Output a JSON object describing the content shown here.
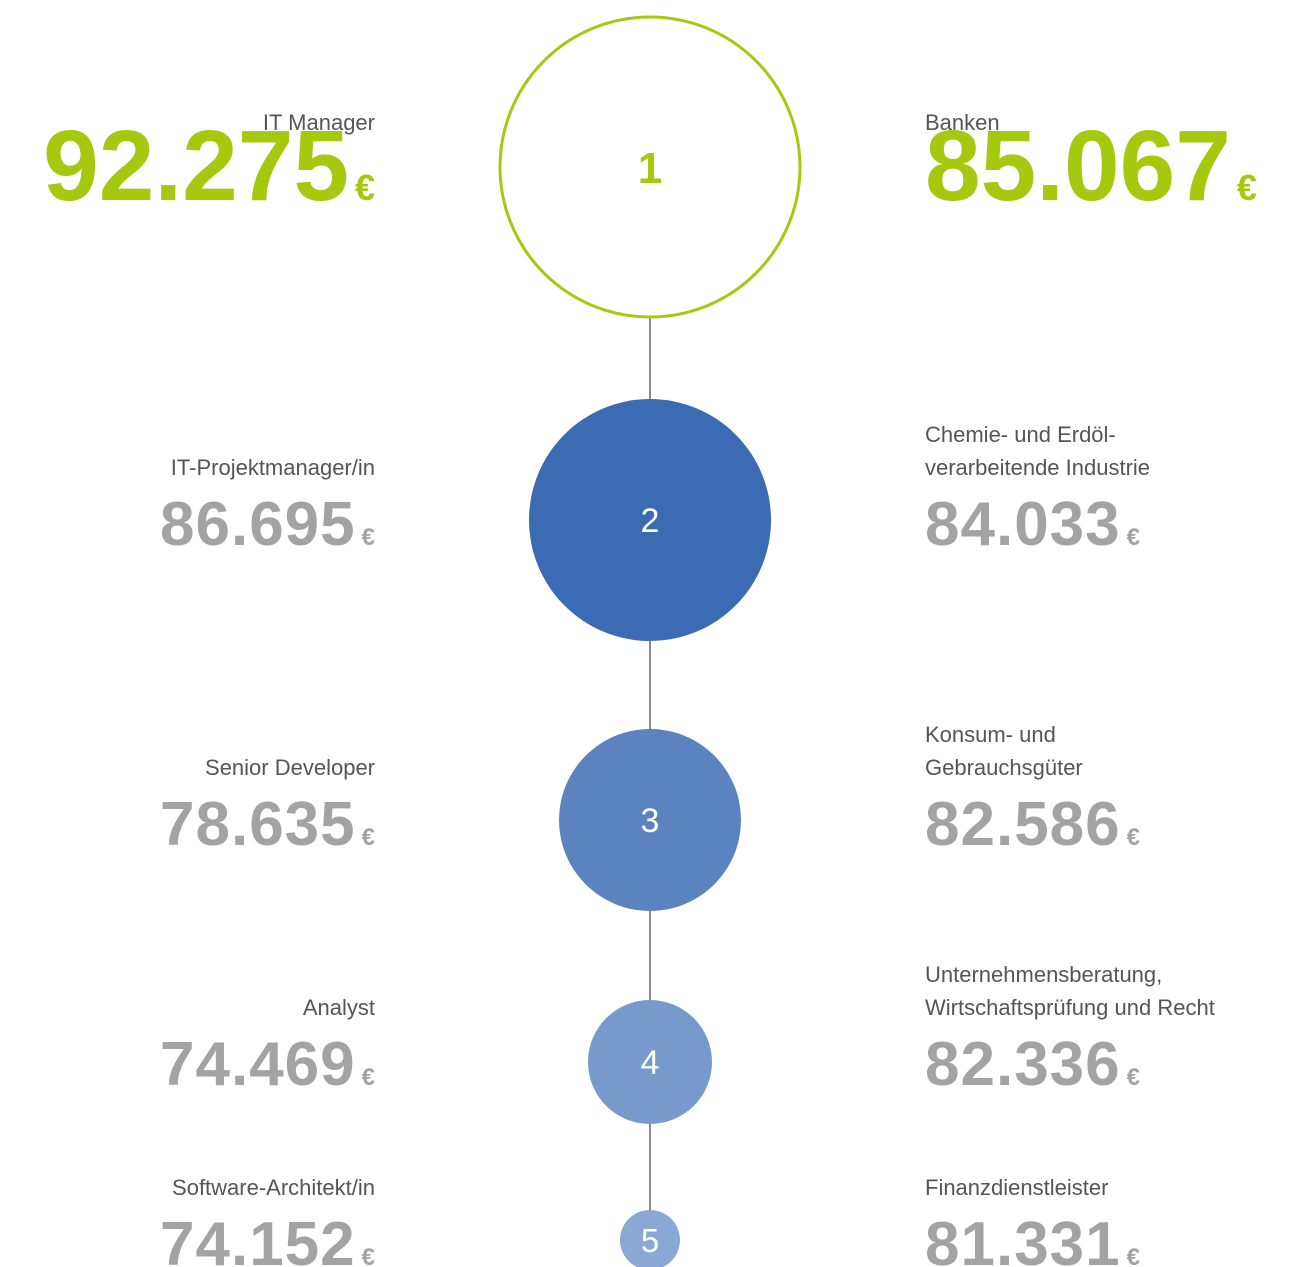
{
  "currency": "€",
  "ranks": [
    {
      "rank": "1",
      "left": {
        "label": [
          "IT Manager"
        ],
        "value": "92.275"
      },
      "right": {
        "label": [
          "Banken"
        ],
        "value": "85.067"
      }
    },
    {
      "rank": "2",
      "left": {
        "label": [
          "IT-Projektmanager/in"
        ],
        "value": "86.695"
      },
      "right": {
        "label": [
          "Chemie- und Erdöl-",
          "verarbeitende Industrie"
        ],
        "value": "84.033"
      }
    },
    {
      "rank": "3",
      "left": {
        "label": [
          "Senior Developer"
        ],
        "value": "78.635"
      },
      "right": {
        "label": [
          "Konsum- und",
          "Gebrauchsgüter"
        ],
        "value": "82.586"
      }
    },
    {
      "rank": "4",
      "left": {
        "label": [
          "Analyst"
        ],
        "value": "74.469"
      },
      "right": {
        "label": [
          "Unternehmensberatung,",
          "Wirtschaftsprüfung und Recht"
        ],
        "value": "82.336"
      }
    },
    {
      "rank": "5",
      "left": {
        "label": [
          "Software-Architekt/in"
        ],
        "value": "74.152"
      },
      "right": {
        "label": [
          "Finanzdienstleister"
        ],
        "value": "81.331"
      }
    }
  ]
}
